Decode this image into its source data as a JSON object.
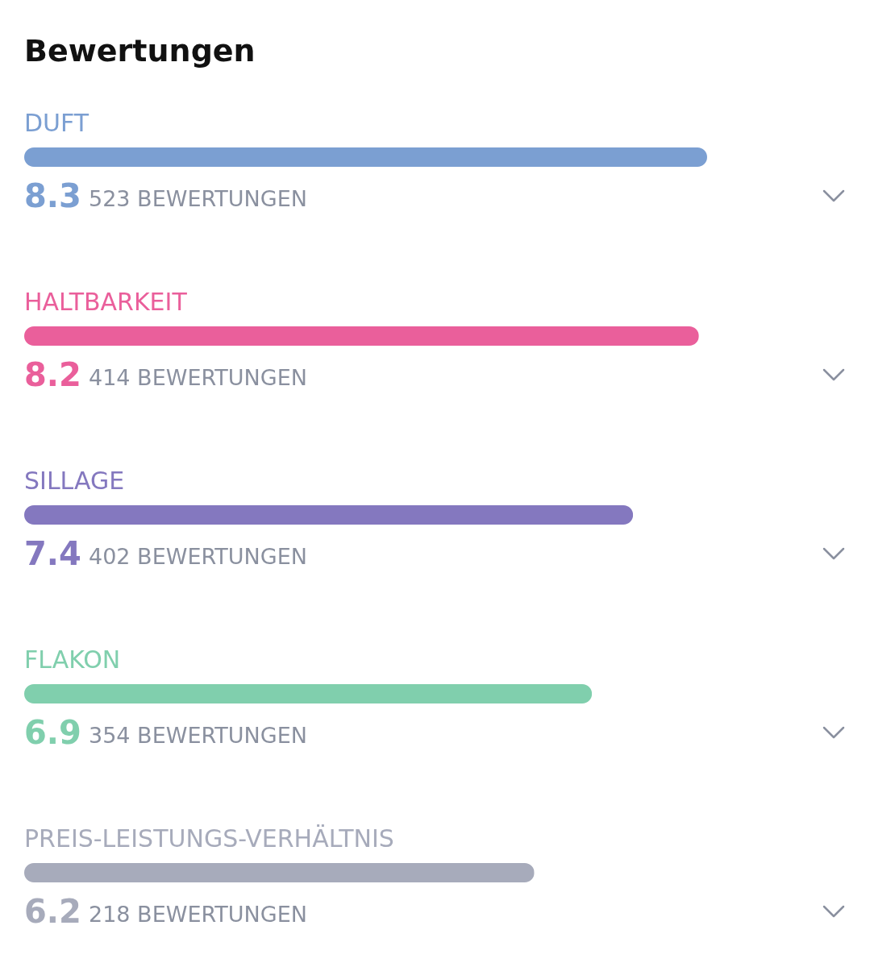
{
  "chart_data": {
    "type": "bar",
    "orientation": "horizontal",
    "title": "Bewertungen",
    "categories": [
      "DUFT",
      "HALTBARKEIT",
      "SILLAGE",
      "FLAKON",
      "PREIS-LEISTUNGS-VERHÄLTNIS"
    ],
    "values": [
      8.3,
      8.2,
      7.4,
      6.9,
      6.2
    ],
    "colors": [
      "#7b9fd2",
      "#ea5f9b",
      "#8478bf",
      "#80cfad",
      "#a7abbb"
    ],
    "data_labels": true,
    "annotations": [
      "523 BEWERTUNGEN",
      "414 BEWERTUNGEN",
      "402 BEWERTUNGEN",
      "354 BEWERTUNGEN",
      "218 BEWERTUNGEN"
    ]
  }
}
